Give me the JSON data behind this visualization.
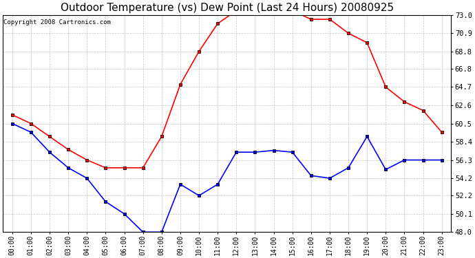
{
  "title": "Outdoor Temperature (vs) Dew Point (Last 24 Hours) 20080925",
  "copyright": "Copyright 2008 Cartronics.com",
  "hours": [
    "00:00",
    "01:00",
    "02:00",
    "03:00",
    "04:00",
    "05:00",
    "06:00",
    "07:00",
    "08:00",
    "09:00",
    "10:00",
    "11:00",
    "12:00",
    "13:00",
    "14:00",
    "15:00",
    "16:00",
    "17:00",
    "18:00",
    "19:00",
    "20:00",
    "21:00",
    "22:00",
    "23:00"
  ],
  "temp": [
    61.5,
    60.5,
    59.0,
    57.5,
    56.3,
    55.4,
    55.4,
    55.4,
    59.0,
    65.0,
    68.8,
    72.0,
    73.5,
    73.5,
    73.5,
    73.5,
    72.5,
    72.5,
    70.9,
    69.8,
    64.7,
    63.0,
    62.0,
    59.5
  ],
  "dew": [
    60.5,
    59.5,
    57.2,
    55.4,
    54.2,
    51.5,
    50.1,
    48.0,
    48.0,
    53.5,
    52.2,
    53.5,
    57.2,
    57.2,
    57.4,
    57.2,
    54.5,
    54.2,
    55.4,
    59.0,
    55.2,
    56.3,
    56.3,
    56.3
  ],
  "ylim_min": 48.0,
  "ylim_max": 73.0,
  "yticks": [
    48.0,
    50.1,
    52.2,
    54.2,
    56.3,
    58.4,
    60.5,
    62.6,
    64.7,
    66.8,
    68.8,
    70.9,
    73.0
  ],
  "temp_color": "#ff0000",
  "dew_color": "#0000ff",
  "bg_color": "#ffffff",
  "grid_color": "#bbbbbb",
  "title_fontsize": 11,
  "copyright_fontsize": 6.5,
  "tick_fontsize": 7,
  "ytick_fontsize": 7.5
}
